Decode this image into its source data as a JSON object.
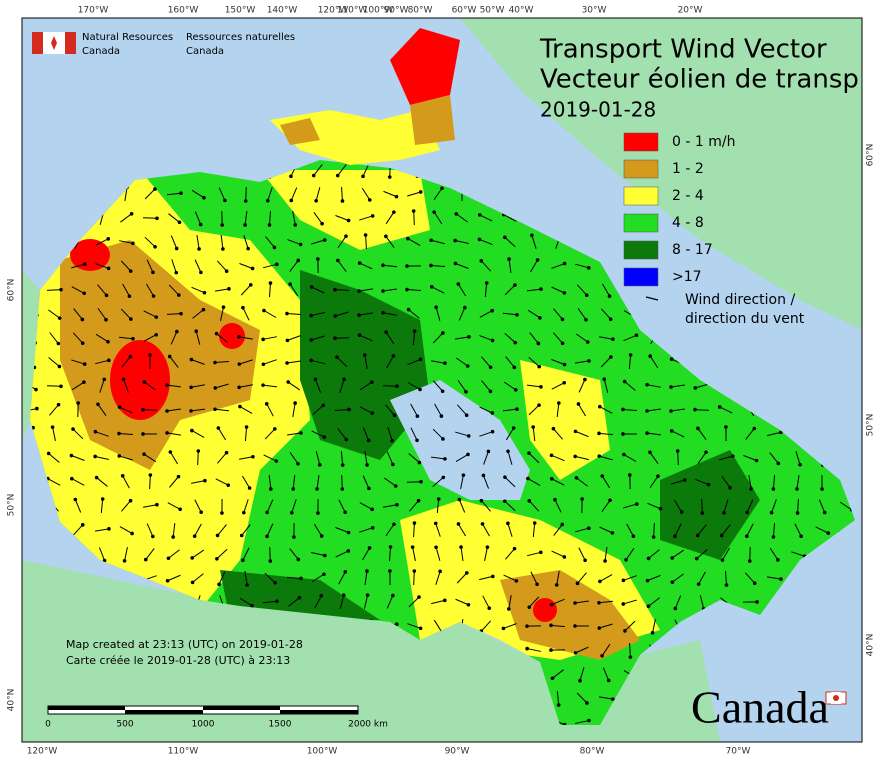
{
  "header": {
    "org_en": [
      "Natural Resources",
      "Canada"
    ],
    "org_fr": [
      "Ressources naturelles",
      "Canada"
    ]
  },
  "title": [
    "Transport Wind Vector",
    "Vecteur éolien de transp"
  ],
  "date": "2019-01-28",
  "legend": {
    "items": [
      {
        "label": "0 - 1 m/h",
        "color": "#ff0000"
      },
      {
        "label": "1 - 2",
        "color": "#d39a1c"
      },
      {
        "label": "2 - 4",
        "color": "#ffff33"
      },
      {
        "label": "4 - 8",
        "color": "#22dd22"
      },
      {
        "label": "8 - 17",
        "color": "#0b7a0b"
      },
      {
        "label": ">17",
        "color": "#0000ff"
      }
    ],
    "arrow_label": [
      "Wind direction /",
      "direction du vent"
    ]
  },
  "footer": [
    "Map created at 23:13 (UTC) on 2019-01-28",
    "Carte créée le 2019-01-28 (UTC) à 23:13"
  ],
  "scale_bar": [
    "0",
    "500",
    "1000",
    "1500",
    "2000 km"
  ],
  "graticule": {
    "top": [
      "170°W",
      "160°W",
      "150°W",
      "140°W",
      "120°W",
      "110°W",
      "100°W",
      "90°W",
      "80°W",
      "60°W",
      "50°W",
      "40°W",
      "30°W",
      "20°W"
    ],
    "bottom": [
      "120°W",
      "110°W",
      "100°W",
      "90°W",
      "80°W",
      "70°W"
    ],
    "left": [
      "60°N",
      "50°N",
      "40°N"
    ],
    "right": [
      "60°N",
      "50°N",
      "40°N"
    ]
  },
  "wordmark": "Canada"
}
